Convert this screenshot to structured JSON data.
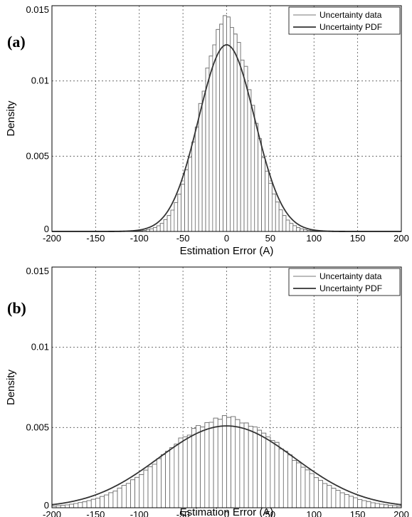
{
  "chart_data": [
    {
      "type": "bar",
      "panel_label": "(a)",
      "xlabel": "Estimation Error (A)",
      "ylabel": "Density",
      "xlim": [
        -200,
        200
      ],
      "ylim": [
        0,
        0.015
      ],
      "x_ticks": [
        "-200",
        "-150",
        "-100",
        "-50",
        "0",
        "50",
        "100",
        "150",
        "200"
      ],
      "y_ticks": [
        "0",
        "0.005",
        "0.01",
        "0.015"
      ],
      "grid": true,
      "legend_position": "top-right",
      "legend": [
        {
          "label": "Uncertainty data",
          "style": "thin"
        },
        {
          "label": "Uncertainty PDF",
          "style": "thick"
        }
      ],
      "histogram": {
        "bin_width": 4,
        "x_start": -116,
        "x_end": 120,
        "sigma": 29,
        "peak": 0.0142
      },
      "pdf": {
        "mean": 0,
        "sigma": 32,
        "peak": 0.0124
      }
    },
    {
      "type": "bar",
      "panel_label": "(b)",
      "xlabel": "Estimation Error (A)",
      "ylabel": "Density",
      "xlim": [
        -200,
        200
      ],
      "ylim": [
        0,
        0.015
      ],
      "x_ticks": [
        "-200",
        "-150",
        "-100",
        "-50",
        "0",
        "50",
        "100",
        "150",
        "200"
      ],
      "y_ticks": [
        "0",
        "0.005",
        "0.01",
        "0.015"
      ],
      "grid": true,
      "legend_position": "top-right",
      "legend": [
        {
          "label": "Uncertainty data",
          "style": "thin"
        },
        {
          "label": "Uncertainty PDF",
          "style": "thick"
        }
      ],
      "histogram": {
        "bin_width": 5,
        "x_start": -200,
        "x_end": 200,
        "sigma": 70,
        "peak": 0.0056
      },
      "pdf": {
        "mean": 0,
        "sigma": 78,
        "peak": 0.0051
      }
    }
  ]
}
